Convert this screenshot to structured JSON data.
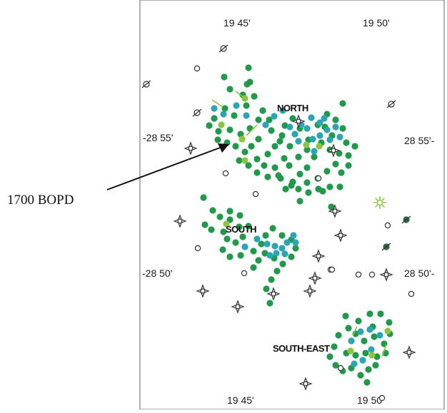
{
  "map": {
    "top_longitudes": [
      "19 45'",
      "19 50'"
    ],
    "bottom_longitudes": [
      "19 45'",
      "19 50'"
    ],
    "left_latitudes": [
      "-28 55'",
      "-28 50'"
    ],
    "right_latitudes": [
      "28 55'-",
      "28 50'-"
    ],
    "fields": {
      "north": "NORTH",
      "south": "SOUTH",
      "southeast": "SOUTH-EAST"
    },
    "annotation": "1700 BOPD",
    "colors": {
      "oil_well": "#1f9a4b",
      "gas_well": "#2aa5b5",
      "light_well": "#8cc63f",
      "dry_hole": "#333333",
      "frame": "#666666"
    }
  }
}
